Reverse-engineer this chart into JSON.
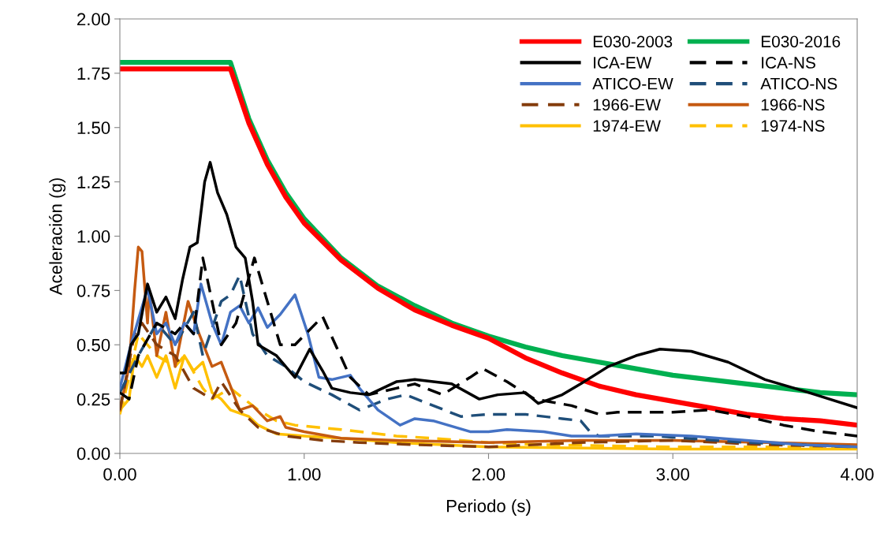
{
  "chart_data": {
    "type": "line",
    "xlabel": "Periodo (s)",
    "ylabel": "Aceleración (g)",
    "xlim": [
      0,
      4
    ],
    "ylim": [
      0,
      2
    ],
    "xticks": [
      {
        "value": 0,
        "label": "0.00"
      },
      {
        "value": 1,
        "label": "1.00"
      },
      {
        "value": 2,
        "label": "2.00"
      },
      {
        "value": 3,
        "label": "3.00"
      },
      {
        "value": 4,
        "label": "4.00"
      }
    ],
    "yticks": [
      {
        "value": 0,
        "label": "0.00"
      },
      {
        "value": 0.25,
        "label": "0.25"
      },
      {
        "value": 0.5,
        "label": "0.50"
      },
      {
        "value": 0.75,
        "label": "0.75"
      },
      {
        "value": 1.0,
        "label": "1.00"
      },
      {
        "value": 1.25,
        "label": "1.25"
      },
      {
        "value": 1.5,
        "label": "1.50"
      },
      {
        "value": 1.75,
        "label": "1.75"
      },
      {
        "value": 2.0,
        "label": "2.00"
      }
    ],
    "grid": false,
    "legend": "top right",
    "marker": "none",
    "series": [
      {
        "name": "E030-2003",
        "color": "#ff0000",
        "line_style": "solid",
        "x": [
          0,
          0.6,
          0.7,
          0.8,
          0.9,
          1.0,
          1.2,
          1.4,
          1.6,
          1.8,
          2.0,
          2.2,
          2.4,
          2.6,
          2.8,
          3.0,
          3.2,
          3.4,
          3.6,
          3.8,
          4.0
        ],
        "values": [
          1.77,
          1.77,
          1.52,
          1.33,
          1.18,
          1.06,
          0.89,
          0.76,
          0.66,
          0.59,
          0.53,
          0.44,
          0.37,
          0.31,
          0.27,
          0.24,
          0.21,
          0.18,
          0.16,
          0.15,
          0.13
        ]
      },
      {
        "name": "E030-2016",
        "color": "#00b050",
        "line_style": "solid",
        "x": [
          0,
          0.6,
          0.7,
          0.8,
          0.9,
          1.0,
          1.2,
          1.4,
          1.6,
          1.8,
          2.0,
          2.2,
          2.4,
          2.6,
          2.8,
          3.0,
          3.2,
          3.4,
          3.6,
          3.8,
          4.0
        ],
        "values": [
          1.8,
          1.8,
          1.54,
          1.35,
          1.2,
          1.08,
          0.9,
          0.77,
          0.68,
          0.6,
          0.54,
          0.49,
          0.45,
          0.42,
          0.39,
          0.36,
          0.34,
          0.32,
          0.3,
          0.28,
          0.27
        ]
      },
      {
        "name": "ICA-EW",
        "color": "#000000",
        "line_style": "solid",
        "x": [
          0,
          0.03,
          0.06,
          0.1,
          0.15,
          0.2,
          0.25,
          0.3,
          0.34,
          0.38,
          0.42,
          0.46,
          0.49,
          0.53,
          0.58,
          0.63,
          0.68,
          0.72,
          0.75,
          0.85,
          0.95,
          1.03,
          1.1,
          1.15,
          1.25,
          1.35,
          1.5,
          1.6,
          1.8,
          1.95,
          2.05,
          2.2,
          2.27,
          2.4,
          2.5,
          2.65,
          2.8,
          2.93,
          3.1,
          3.3,
          3.5,
          3.7,
          4.0
        ],
        "values": [
          0.37,
          0.37,
          0.5,
          0.55,
          0.78,
          0.65,
          0.72,
          0.62,
          0.8,
          0.95,
          0.97,
          1.25,
          1.34,
          1.2,
          1.1,
          0.95,
          0.9,
          0.7,
          0.5,
          0.45,
          0.35,
          0.48,
          0.38,
          0.3,
          0.28,
          0.27,
          0.33,
          0.34,
          0.32,
          0.25,
          0.27,
          0.28,
          0.23,
          0.27,
          0.32,
          0.4,
          0.45,
          0.48,
          0.47,
          0.42,
          0.34,
          0.29,
          0.21
        ]
      },
      {
        "name": "ICA-NS",
        "color": "#000000",
        "line_style": "dashed",
        "x": [
          0,
          0.05,
          0.1,
          0.2,
          0.3,
          0.35,
          0.4,
          0.45,
          0.55,
          0.63,
          0.73,
          0.87,
          0.95,
          1.1,
          1.25,
          1.35,
          1.5,
          1.6,
          1.75,
          1.9,
          1.97,
          2.1,
          2.25,
          2.45,
          2.6,
          2.7,
          3.0,
          3.2,
          3.4,
          3.6,
          3.8,
          4.0
        ],
        "values": [
          0.28,
          0.25,
          0.45,
          0.6,
          0.55,
          0.6,
          0.55,
          0.9,
          0.5,
          0.6,
          0.9,
          0.5,
          0.5,
          0.63,
          0.35,
          0.27,
          0.3,
          0.32,
          0.27,
          0.35,
          0.39,
          0.33,
          0.25,
          0.22,
          0.18,
          0.19,
          0.19,
          0.2,
          0.17,
          0.13,
          0.1,
          0.08
        ]
      },
      {
        "name": "ATICO-EW",
        "color": "#4472c4",
        "line_style": "solid",
        "x": [
          0,
          0.06,
          0.15,
          0.2,
          0.25,
          0.3,
          0.35,
          0.4,
          0.44,
          0.5,
          0.55,
          0.6,
          0.65,
          0.7,
          0.75,
          0.8,
          0.87,
          0.95,
          1.02,
          1.08,
          1.15,
          1.25,
          1.3,
          1.4,
          1.52,
          1.6,
          1.7,
          1.9,
          2.0,
          2.1,
          2.3,
          2.45,
          2.6,
          2.8,
          3.1,
          3.4,
          3.7,
          4.0
        ],
        "values": [
          0.3,
          0.5,
          0.76,
          0.55,
          0.6,
          0.5,
          0.6,
          0.55,
          0.78,
          0.6,
          0.5,
          0.65,
          0.68,
          0.6,
          0.67,
          0.58,
          0.64,
          0.73,
          0.55,
          0.35,
          0.34,
          0.36,
          0.3,
          0.2,
          0.13,
          0.16,
          0.15,
          0.1,
          0.1,
          0.11,
          0.1,
          0.08,
          0.08,
          0.09,
          0.08,
          0.06,
          0.04,
          0.03
        ]
      },
      {
        "name": "ATICO-NS",
        "color": "#1f4e79",
        "line_style": "dashed",
        "x": [
          0,
          0.1,
          0.2,
          0.3,
          0.4,
          0.45,
          0.55,
          0.6,
          0.65,
          0.72,
          0.8,
          0.9,
          1.0,
          1.15,
          1.3,
          1.45,
          1.55,
          1.7,
          1.85,
          2.0,
          2.2,
          2.4,
          2.5,
          2.55,
          2.6,
          2.9,
          3.4,
          4.0
        ],
        "values": [
          0.28,
          0.45,
          0.6,
          0.5,
          0.65,
          0.45,
          0.7,
          0.73,
          0.82,
          0.55,
          0.45,
          0.4,
          0.33,
          0.27,
          0.2,
          0.25,
          0.27,
          0.22,
          0.17,
          0.18,
          0.18,
          0.16,
          0.15,
          0.1,
          0.08,
          0.08,
          0.05,
          0.03
        ]
      },
      {
        "name": "1966-EW",
        "color": "#843c0c",
        "line_style": "dashed",
        "x": [
          0,
          0.08,
          0.12,
          0.2,
          0.3,
          0.4,
          0.5,
          0.55,
          0.65,
          0.75,
          0.9,
          1.1,
          1.3,
          1.6,
          2.0,
          2.5,
          3.0,
          3.5,
          4.0
        ],
        "values": [
          0.2,
          0.55,
          0.6,
          0.5,
          0.45,
          0.3,
          0.25,
          0.33,
          0.2,
          0.12,
          0.08,
          0.06,
          0.05,
          0.04,
          0.03,
          0.05,
          0.06,
          0.04,
          0.03
        ]
      },
      {
        "name": "1966-NS",
        "color": "#c55a11",
        "line_style": "solid",
        "x": [
          0,
          0.05,
          0.08,
          0.1,
          0.12,
          0.15,
          0.16,
          0.2,
          0.25,
          0.3,
          0.37,
          0.43,
          0.5,
          0.55,
          0.65,
          0.72,
          0.8,
          0.87,
          0.9,
          1.0,
          1.2,
          1.5,
          2.0,
          2.5,
          3.0,
          4.0
        ],
        "values": [
          0.2,
          0.4,
          0.75,
          0.95,
          0.93,
          0.6,
          0.75,
          0.45,
          0.65,
          0.4,
          0.7,
          0.55,
          0.4,
          0.42,
          0.2,
          0.22,
          0.15,
          0.17,
          0.12,
          0.1,
          0.07,
          0.06,
          0.05,
          0.06,
          0.06,
          0.04
        ]
      },
      {
        "name": "1974-EW",
        "color": "#ffc000",
        "line_style": "solid",
        "x": [
          0,
          0.05,
          0.08,
          0.12,
          0.15,
          0.2,
          0.25,
          0.3,
          0.35,
          0.4,
          0.45,
          0.5,
          0.55,
          0.6,
          0.7,
          0.75,
          0.85,
          1.0,
          1.2,
          1.5,
          2.0,
          3.0,
          4.0
        ],
        "values": [
          0.2,
          0.25,
          0.45,
          0.4,
          0.45,
          0.35,
          0.45,
          0.3,
          0.45,
          0.38,
          0.42,
          0.28,
          0.25,
          0.2,
          0.17,
          0.13,
          0.09,
          0.08,
          0.07,
          0.05,
          0.03,
          0.02,
          0.02
        ]
      },
      {
        "name": "1974-NS",
        "color": "#ffc000",
        "line_style": "dashed",
        "x": [
          0,
          0.05,
          0.1,
          0.15,
          0.2,
          0.3,
          0.35,
          0.45,
          0.5,
          0.6,
          0.75,
          0.85,
          0.95,
          1.2,
          1.5,
          1.7,
          2.0,
          2.3,
          3.0,
          4.0
        ],
        "values": [
          0.18,
          0.35,
          0.55,
          0.5,
          0.45,
          0.4,
          0.45,
          0.3,
          0.25,
          0.3,
          0.2,
          0.15,
          0.13,
          0.11,
          0.08,
          0.07,
          0.05,
          0.04,
          0.03,
          0.03
        ]
      }
    ]
  }
}
